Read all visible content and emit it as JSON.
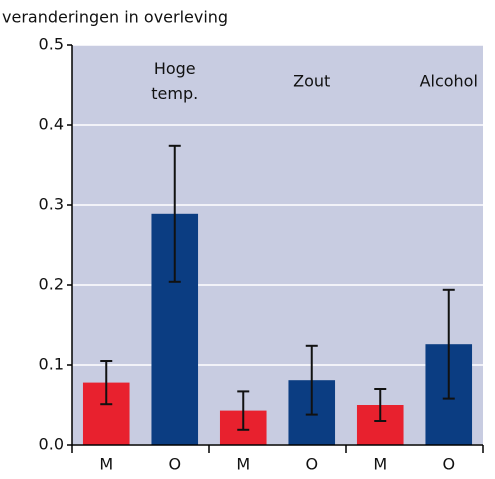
{
  "chart_data": {
    "type": "bar",
    "y_label": "veranderingen in overleving",
    "categories": [
      "M",
      "O",
      "M",
      "O",
      "M",
      "O"
    ],
    "values": [
      0.078,
      0.289,
      0.043,
      0.081,
      0.05,
      0.126
    ],
    "errors": [
      0.027,
      0.085,
      0.024,
      0.043,
      0.02,
      0.068
    ],
    "colors": [
      "#e8212e",
      "#0b3d82",
      "#e8212e",
      "#0b3d82",
      "#e8212e",
      "#0b3d82"
    ],
    "annotations": [
      [
        "Hoge",
        "temp."
      ],
      [
        "Zout"
      ],
      [
        "Alcohol"
      ]
    ],
    "ylim": [
      0,
      0.5
    ],
    "yticks": [
      {
        "value": 0,
        "label": "0.0"
      },
      0.1,
      0.2,
      0.3,
      0.4,
      0.5
    ],
    "grid": true
  }
}
